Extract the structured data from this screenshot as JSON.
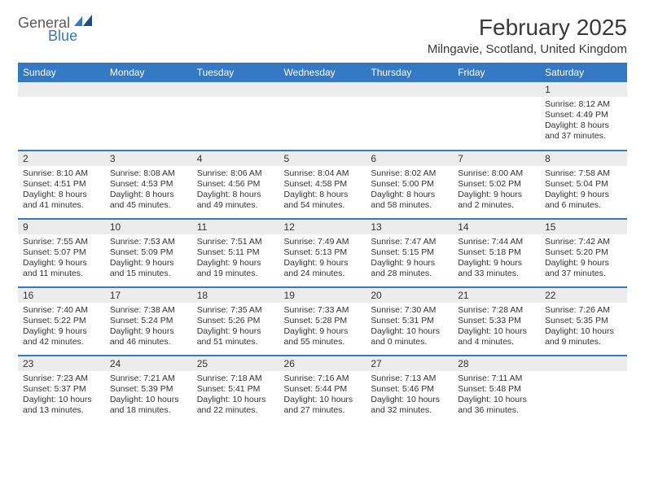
{
  "logo": {
    "part1": "General",
    "part2": "Blue"
  },
  "title": "February 2025",
  "location": "Milngavie, Scotland, United Kingdom",
  "colors": {
    "accent": "#3578c4",
    "daynum_bg": "#ececec",
    "text": "#333333",
    "logo_gray": "#5a5a5a"
  },
  "day_headers": [
    "Sunday",
    "Monday",
    "Tuesday",
    "Wednesday",
    "Thursday",
    "Friday",
    "Saturday"
  ],
  "weeks": [
    [
      {
        "n": "",
        "lines": []
      },
      {
        "n": "",
        "lines": []
      },
      {
        "n": "",
        "lines": []
      },
      {
        "n": "",
        "lines": []
      },
      {
        "n": "",
        "lines": []
      },
      {
        "n": "",
        "lines": []
      },
      {
        "n": "1",
        "lines": [
          "Sunrise: 8:12 AM",
          "Sunset: 4:49 PM",
          "Daylight: 8 hours",
          "and 37 minutes."
        ]
      }
    ],
    [
      {
        "n": "2",
        "lines": [
          "Sunrise: 8:10 AM",
          "Sunset: 4:51 PM",
          "Daylight: 8 hours",
          "and 41 minutes."
        ]
      },
      {
        "n": "3",
        "lines": [
          "Sunrise: 8:08 AM",
          "Sunset: 4:53 PM",
          "Daylight: 8 hours",
          "and 45 minutes."
        ]
      },
      {
        "n": "4",
        "lines": [
          "Sunrise: 8:06 AM",
          "Sunset: 4:56 PM",
          "Daylight: 8 hours",
          "and 49 minutes."
        ]
      },
      {
        "n": "5",
        "lines": [
          "Sunrise: 8:04 AM",
          "Sunset: 4:58 PM",
          "Daylight: 8 hours",
          "and 54 minutes."
        ]
      },
      {
        "n": "6",
        "lines": [
          "Sunrise: 8:02 AM",
          "Sunset: 5:00 PM",
          "Daylight: 8 hours",
          "and 58 minutes."
        ]
      },
      {
        "n": "7",
        "lines": [
          "Sunrise: 8:00 AM",
          "Sunset: 5:02 PM",
          "Daylight: 9 hours",
          "and 2 minutes."
        ]
      },
      {
        "n": "8",
        "lines": [
          "Sunrise: 7:58 AM",
          "Sunset: 5:04 PM",
          "Daylight: 9 hours",
          "and 6 minutes."
        ]
      }
    ],
    [
      {
        "n": "9",
        "lines": [
          "Sunrise: 7:55 AM",
          "Sunset: 5:07 PM",
          "Daylight: 9 hours",
          "and 11 minutes."
        ]
      },
      {
        "n": "10",
        "lines": [
          "Sunrise: 7:53 AM",
          "Sunset: 5:09 PM",
          "Daylight: 9 hours",
          "and 15 minutes."
        ]
      },
      {
        "n": "11",
        "lines": [
          "Sunrise: 7:51 AM",
          "Sunset: 5:11 PM",
          "Daylight: 9 hours",
          "and 19 minutes."
        ]
      },
      {
        "n": "12",
        "lines": [
          "Sunrise: 7:49 AM",
          "Sunset: 5:13 PM",
          "Daylight: 9 hours",
          "and 24 minutes."
        ]
      },
      {
        "n": "13",
        "lines": [
          "Sunrise: 7:47 AM",
          "Sunset: 5:15 PM",
          "Daylight: 9 hours",
          "and 28 minutes."
        ]
      },
      {
        "n": "14",
        "lines": [
          "Sunrise: 7:44 AM",
          "Sunset: 5:18 PM",
          "Daylight: 9 hours",
          "and 33 minutes."
        ]
      },
      {
        "n": "15",
        "lines": [
          "Sunrise: 7:42 AM",
          "Sunset: 5:20 PM",
          "Daylight: 9 hours",
          "and 37 minutes."
        ]
      }
    ],
    [
      {
        "n": "16",
        "lines": [
          "Sunrise: 7:40 AM",
          "Sunset: 5:22 PM",
          "Daylight: 9 hours",
          "and 42 minutes."
        ]
      },
      {
        "n": "17",
        "lines": [
          "Sunrise: 7:38 AM",
          "Sunset: 5:24 PM",
          "Daylight: 9 hours",
          "and 46 minutes."
        ]
      },
      {
        "n": "18",
        "lines": [
          "Sunrise: 7:35 AM",
          "Sunset: 5:26 PM",
          "Daylight: 9 hours",
          "and 51 minutes."
        ]
      },
      {
        "n": "19",
        "lines": [
          "Sunrise: 7:33 AM",
          "Sunset: 5:28 PM",
          "Daylight: 9 hours",
          "and 55 minutes."
        ]
      },
      {
        "n": "20",
        "lines": [
          "Sunrise: 7:30 AM",
          "Sunset: 5:31 PM",
          "Daylight: 10 hours",
          "and 0 minutes."
        ]
      },
      {
        "n": "21",
        "lines": [
          "Sunrise: 7:28 AM",
          "Sunset: 5:33 PM",
          "Daylight: 10 hours",
          "and 4 minutes."
        ]
      },
      {
        "n": "22",
        "lines": [
          "Sunrise: 7:26 AM",
          "Sunset: 5:35 PM",
          "Daylight: 10 hours",
          "and 9 minutes."
        ]
      }
    ],
    [
      {
        "n": "23",
        "lines": [
          "Sunrise: 7:23 AM",
          "Sunset: 5:37 PM",
          "Daylight: 10 hours",
          "and 13 minutes."
        ]
      },
      {
        "n": "24",
        "lines": [
          "Sunrise: 7:21 AM",
          "Sunset: 5:39 PM",
          "Daylight: 10 hours",
          "and 18 minutes."
        ]
      },
      {
        "n": "25",
        "lines": [
          "Sunrise: 7:18 AM",
          "Sunset: 5:41 PM",
          "Daylight: 10 hours",
          "and 22 minutes."
        ]
      },
      {
        "n": "26",
        "lines": [
          "Sunrise: 7:16 AM",
          "Sunset: 5:44 PM",
          "Daylight: 10 hours",
          "and 27 minutes."
        ]
      },
      {
        "n": "27",
        "lines": [
          "Sunrise: 7:13 AM",
          "Sunset: 5:46 PM",
          "Daylight: 10 hours",
          "and 32 minutes."
        ]
      },
      {
        "n": "28",
        "lines": [
          "Sunrise: 7:11 AM",
          "Sunset: 5:48 PM",
          "Daylight: 10 hours",
          "and 36 minutes."
        ]
      },
      {
        "n": "",
        "lines": []
      }
    ]
  ]
}
